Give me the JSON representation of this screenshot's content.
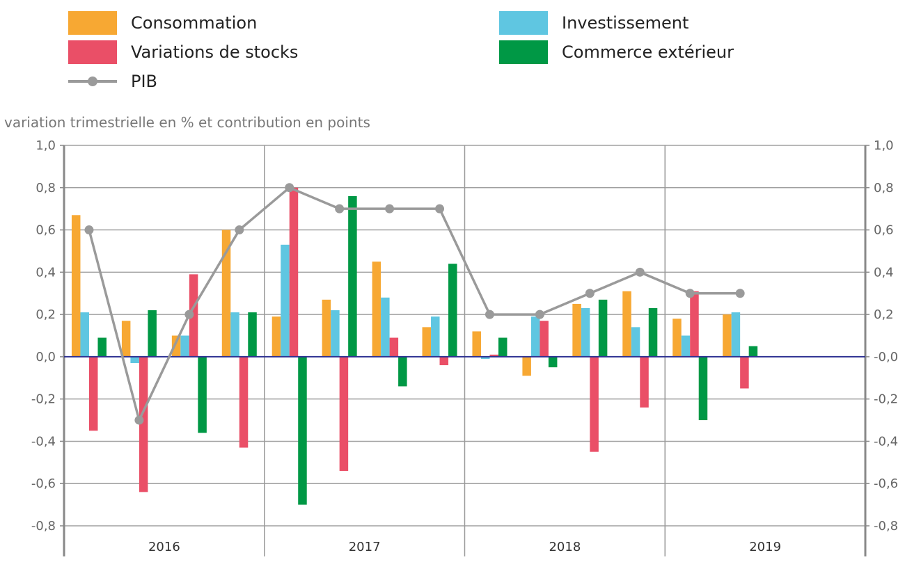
{
  "chart_data": {
    "type": "bar",
    "ylabel": "variation trimestrielle en % et contribution en points",
    "ylim": [
      -0.8,
      1.0
    ],
    "yticks": [
      "1,0",
      "0,8",
      "0,6",
      "0,4",
      "0,2",
      "0,0",
      "-0,2",
      "-0,4",
      "-0,6",
      "-0,8"
    ],
    "yticks_right": [
      "1,0",
      "0,8",
      "0,6",
      "0,4",
      "0,2",
      "-0,0",
      "-0,2",
      "-0,4",
      "-0,6",
      "-0,8"
    ],
    "grid": true,
    "legend_position": "top",
    "years": [
      "2016",
      "2017",
      "2018",
      "2019"
    ],
    "quarters_per_year": 4,
    "x": [
      "2016T1",
      "2016T2",
      "2016T3",
      "2016T4",
      "2017T1",
      "2017T2",
      "2017T3",
      "2017T4",
      "2018T1",
      "2018T2",
      "2018T3",
      "2018T4",
      "2019T1",
      "2019T2"
    ],
    "series": [
      {
        "name": "Consommation",
        "type": "bar",
        "color": "#f7a833",
        "values": [
          0.67,
          0.17,
          0.1,
          0.6,
          0.19,
          0.27,
          0.45,
          0.14,
          0.12,
          -0.09,
          0.25,
          0.31,
          0.18,
          0.2
        ]
      },
      {
        "name": "Investissement",
        "type": "bar",
        "color": "#5fc6e1",
        "values": [
          0.21,
          -0.03,
          0.1,
          0.21,
          0.53,
          0.22,
          0.28,
          0.19,
          -0.01,
          0.19,
          0.23,
          0.14,
          0.1,
          0.21
        ]
      },
      {
        "name": "Variations de stocks",
        "type": "bar",
        "color": "#ea4f67",
        "values": [
          -0.35,
          -0.64,
          0.39,
          -0.43,
          0.8,
          -0.54,
          0.09,
          -0.04,
          0.01,
          0.17,
          -0.45,
          -0.24,
          0.31,
          -0.15
        ]
      },
      {
        "name": "Commerce extérieur",
        "type": "bar",
        "color": "#009845",
        "values": [
          0.09,
          0.22,
          -0.36,
          0.21,
          -0.7,
          0.76,
          -0.14,
          0.44,
          0.09,
          -0.05,
          0.27,
          0.23,
          -0.3,
          0.05
        ]
      },
      {
        "name": "PIB",
        "type": "line",
        "color": "#9a9a9a",
        "values": [
          0.6,
          -0.3,
          0.2,
          0.6,
          0.8,
          0.7,
          0.7,
          0.7,
          0.2,
          0.2,
          0.3,
          0.4,
          0.3,
          0.3
        ]
      }
    ],
    "zero_line_color": "#2e3192"
  }
}
